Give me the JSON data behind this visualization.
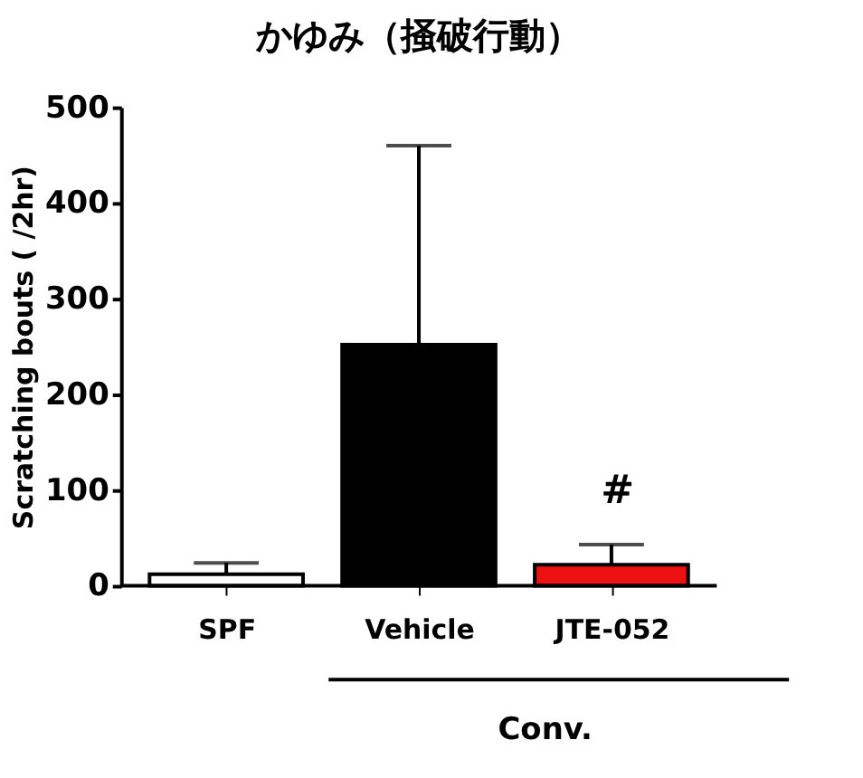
{
  "chart_data": {
    "type": "bar",
    "title": "かゆみ（掻破行動）",
    "ylabel": "Scratching bouts ( /2hr)",
    "categories": [
      "SPF",
      "Vehicle",
      "JTE-052"
    ],
    "values": [
      12,
      252,
      22
    ],
    "errors": [
      12,
      208,
      21
    ],
    "colors": [
      "#ffffff",
      "#000000",
      "#ee1111"
    ],
    "ylim": [
      0,
      500
    ],
    "yticks": [
      0,
      100,
      200,
      300,
      400,
      500
    ],
    "grid": false,
    "annotations": [
      "#",
      "Conv."
    ]
  }
}
